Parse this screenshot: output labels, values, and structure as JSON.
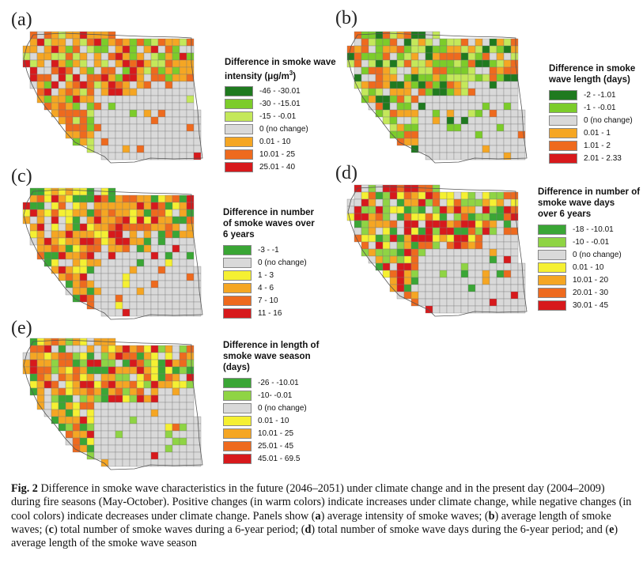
{
  "panels": [
    {
      "letter": "(a)",
      "title_line1": "Difference in smoke wave",
      "title_line2": "intensity (μg/m",
      "title_sup": "3",
      "title_end": ")",
      "legend": [
        {
          "label": "-46 - -30.01",
          "color": "#1f7a1f"
        },
        {
          "label": "-30 - -15.01",
          "color": "#7ccc2a"
        },
        {
          "label": "-15 - -0.01",
          "color": "#c4e85a"
        },
        {
          "label": "0 (no change)",
          "color": "#d9d9d9"
        },
        {
          "label": "0.01 - 10",
          "color": "#f5a623"
        },
        {
          "label": "10.01 - 25",
          "color": "#ee6a1e"
        },
        {
          "label": "25.01 - 40",
          "color": "#d7191c"
        }
      ]
    },
    {
      "letter": "(b)",
      "title_line1": "Difference in smoke",
      "title_line2": "wave length (days)",
      "legend": [
        {
          "label": "-2 - -1.01",
          "color": "#1f7a1f"
        },
        {
          "label": "-1 - -0.01",
          "color": "#7ccc2a"
        },
        {
          "label": "0 (no change)",
          "color": "#d9d9d9"
        },
        {
          "label": "0.01 - 1",
          "color": "#f5a623"
        },
        {
          "label": "1.01 - 2",
          "color": "#ee6a1e"
        },
        {
          "label": "2.01 - 2.33",
          "color": "#d7191c"
        }
      ]
    },
    {
      "letter": "(c)",
      "title_line1": "Difference in number",
      "title_line2": "of smoke waves over",
      "title_line3": "6 years",
      "legend": [
        {
          "label": "-3 - -1",
          "color": "#3aa635"
        },
        {
          "label": "0 (no change)",
          "color": "#d9d9d9"
        },
        {
          "label": "1 - 3",
          "color": "#f5f032"
        },
        {
          "label": "4 - 6",
          "color": "#f5a623"
        },
        {
          "label": "7 - 10",
          "color": "#ee6a1e"
        },
        {
          "label": "11 - 16",
          "color": "#d7191c"
        }
      ]
    },
    {
      "letter": "(d)",
      "title_line1": "Difference in number of",
      "title_line2": "smoke wave days",
      "title_line3": "over 6 years",
      "legend": [
        {
          "label": "-18 - -10.01",
          "color": "#3aa635"
        },
        {
          "label": "-10 - -0.01",
          "color": "#8fd444"
        },
        {
          "label": "0 (no change)",
          "color": "#d9d9d9"
        },
        {
          "label": "0.01 - 10",
          "color": "#f5f032"
        },
        {
          "label": "10.01 - 20",
          "color": "#f5a623"
        },
        {
          "label": "20.01 - 30",
          "color": "#ee6a1e"
        },
        {
          "label": "30.01 - 45",
          "color": "#d7191c"
        }
      ]
    },
    {
      "letter": "(e)",
      "title_line1": "Difference in length of",
      "title_line2": "smoke wave season",
      "title_line3": "(days)",
      "legend": [
        {
          "label": "-26 - -10.01",
          "color": "#3aa635"
        },
        {
          "label": "-10- -0.01",
          "color": "#8fd444"
        },
        {
          "label": "0 (no change)",
          "color": "#d9d9d9"
        },
        {
          "label": "0.01 - 10",
          "color": "#f5f032"
        },
        {
          "label": "10.01 - 25",
          "color": "#f5a623"
        },
        {
          "label": "25.01 - 45",
          "color": "#ee6a1e"
        },
        {
          "label": "45.01 - 69.5",
          "color": "#d7191c"
        }
      ]
    }
  ],
  "caption": {
    "fig_label": "Fig. 2",
    "p1": " Difference in smoke wave characteristics in the future (2046–2051) under climate change and in the present day (2004–2009) during fire seasons (May-October). Positive changes (in warm colors) indicate increases under climate change, while negative changes (in cool colors) indicate decreases under climate change. Panels show (",
    "a": "a",
    "p2": ") average intensity of smoke waves; (",
    "b": "b",
    "p3": ") average length of smoke waves; (",
    "c": "c",
    "p4": ") total number of smoke waves during a 6-year period; (",
    "d": "d",
    "p5": ") total number of smoke wave days during the 6-year period; and (",
    "e": "e",
    "p6": ") average length of the smoke wave season"
  }
}
